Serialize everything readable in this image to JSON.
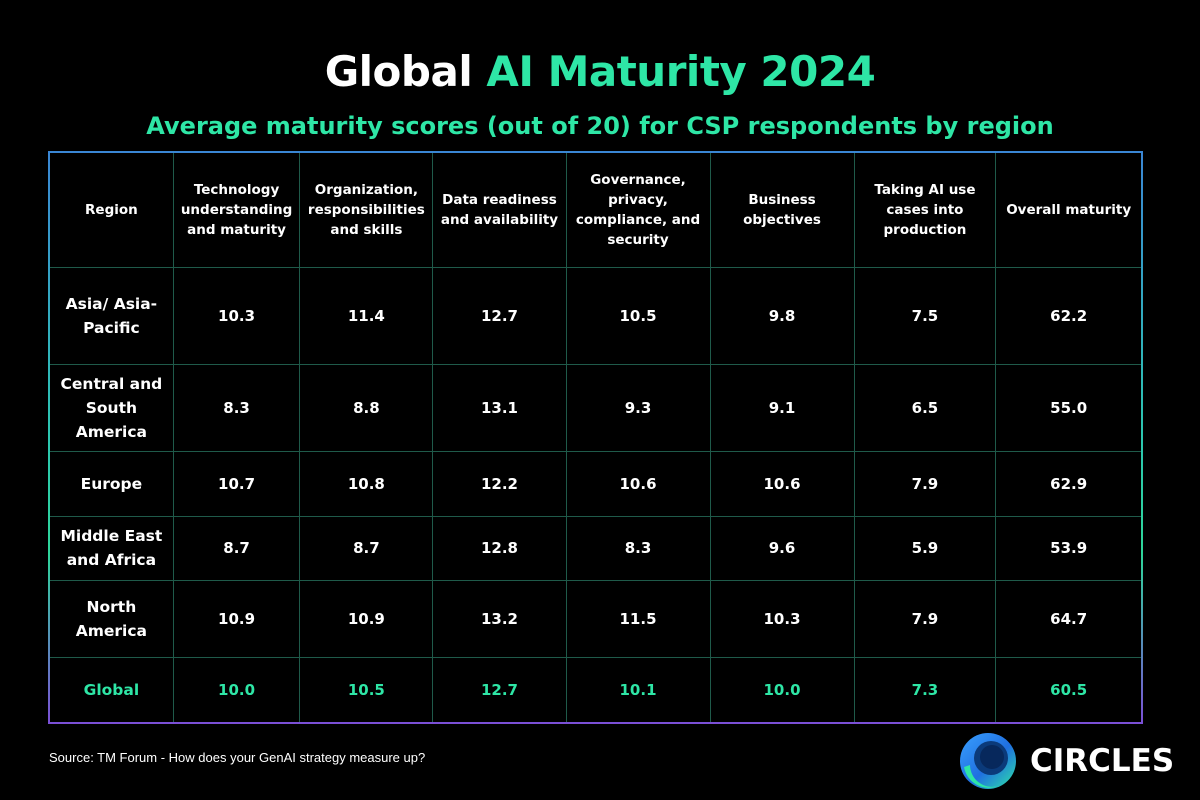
{
  "title": {
    "part1": "Global ",
    "part2": "AI Maturity 2024"
  },
  "subtitle": "Average maturity scores (out of 20) for CSP respondents by region",
  "chart_data": {
    "type": "table",
    "title": "Global AI Maturity 2024",
    "subtitle": "Average maturity scores (out of 20) for CSP respondents by region",
    "columns": [
      "Region",
      "Technology understanding and maturity",
      "Organization, responsibilities and skills",
      "Data readiness and availability",
      "Governance, privacy, compliance, and security",
      "Business objectives",
      "Taking AI use cases into production",
      "Overall maturity"
    ],
    "rows": [
      {
        "region": "Asia/ Asia-Pacific",
        "values": [
          "10.3",
          "11.4",
          "12.7",
          "10.5",
          "9.8",
          "7.5",
          "62.2"
        ]
      },
      {
        "region": "Central and South America",
        "values": [
          "8.3",
          "8.8",
          "13.1",
          "9.3",
          "9.1",
          "6.5",
          "55.0"
        ]
      },
      {
        "region": "Europe",
        "values": [
          "10.7",
          "10.8",
          "12.2",
          "10.6",
          "10.6",
          "7.9",
          "62.9"
        ]
      },
      {
        "region": "Middle East and Africa",
        "values": [
          "8.7",
          "8.7",
          "12.8",
          "8.3",
          "9.6",
          "5.9",
          "53.9"
        ]
      },
      {
        "region": "North America",
        "values": [
          "10.9",
          "10.9",
          "13.2",
          "11.5",
          "10.3",
          "7.9",
          "64.7"
        ]
      },
      {
        "region": "Global",
        "values": [
          "10.0",
          "10.5",
          "12.7",
          "10.1",
          "10.0",
          "7.3",
          "60.5"
        ],
        "highlight": true
      }
    ]
  },
  "source": "Source: TM Forum - How does your GenAI strategy measure up?",
  "logo": {
    "text": "CIRCLES",
    "icon": "circles-logo-icon"
  },
  "colors": {
    "accent": "#2ee6a6",
    "background": "#000000",
    "grid": "#1f5a4a"
  }
}
